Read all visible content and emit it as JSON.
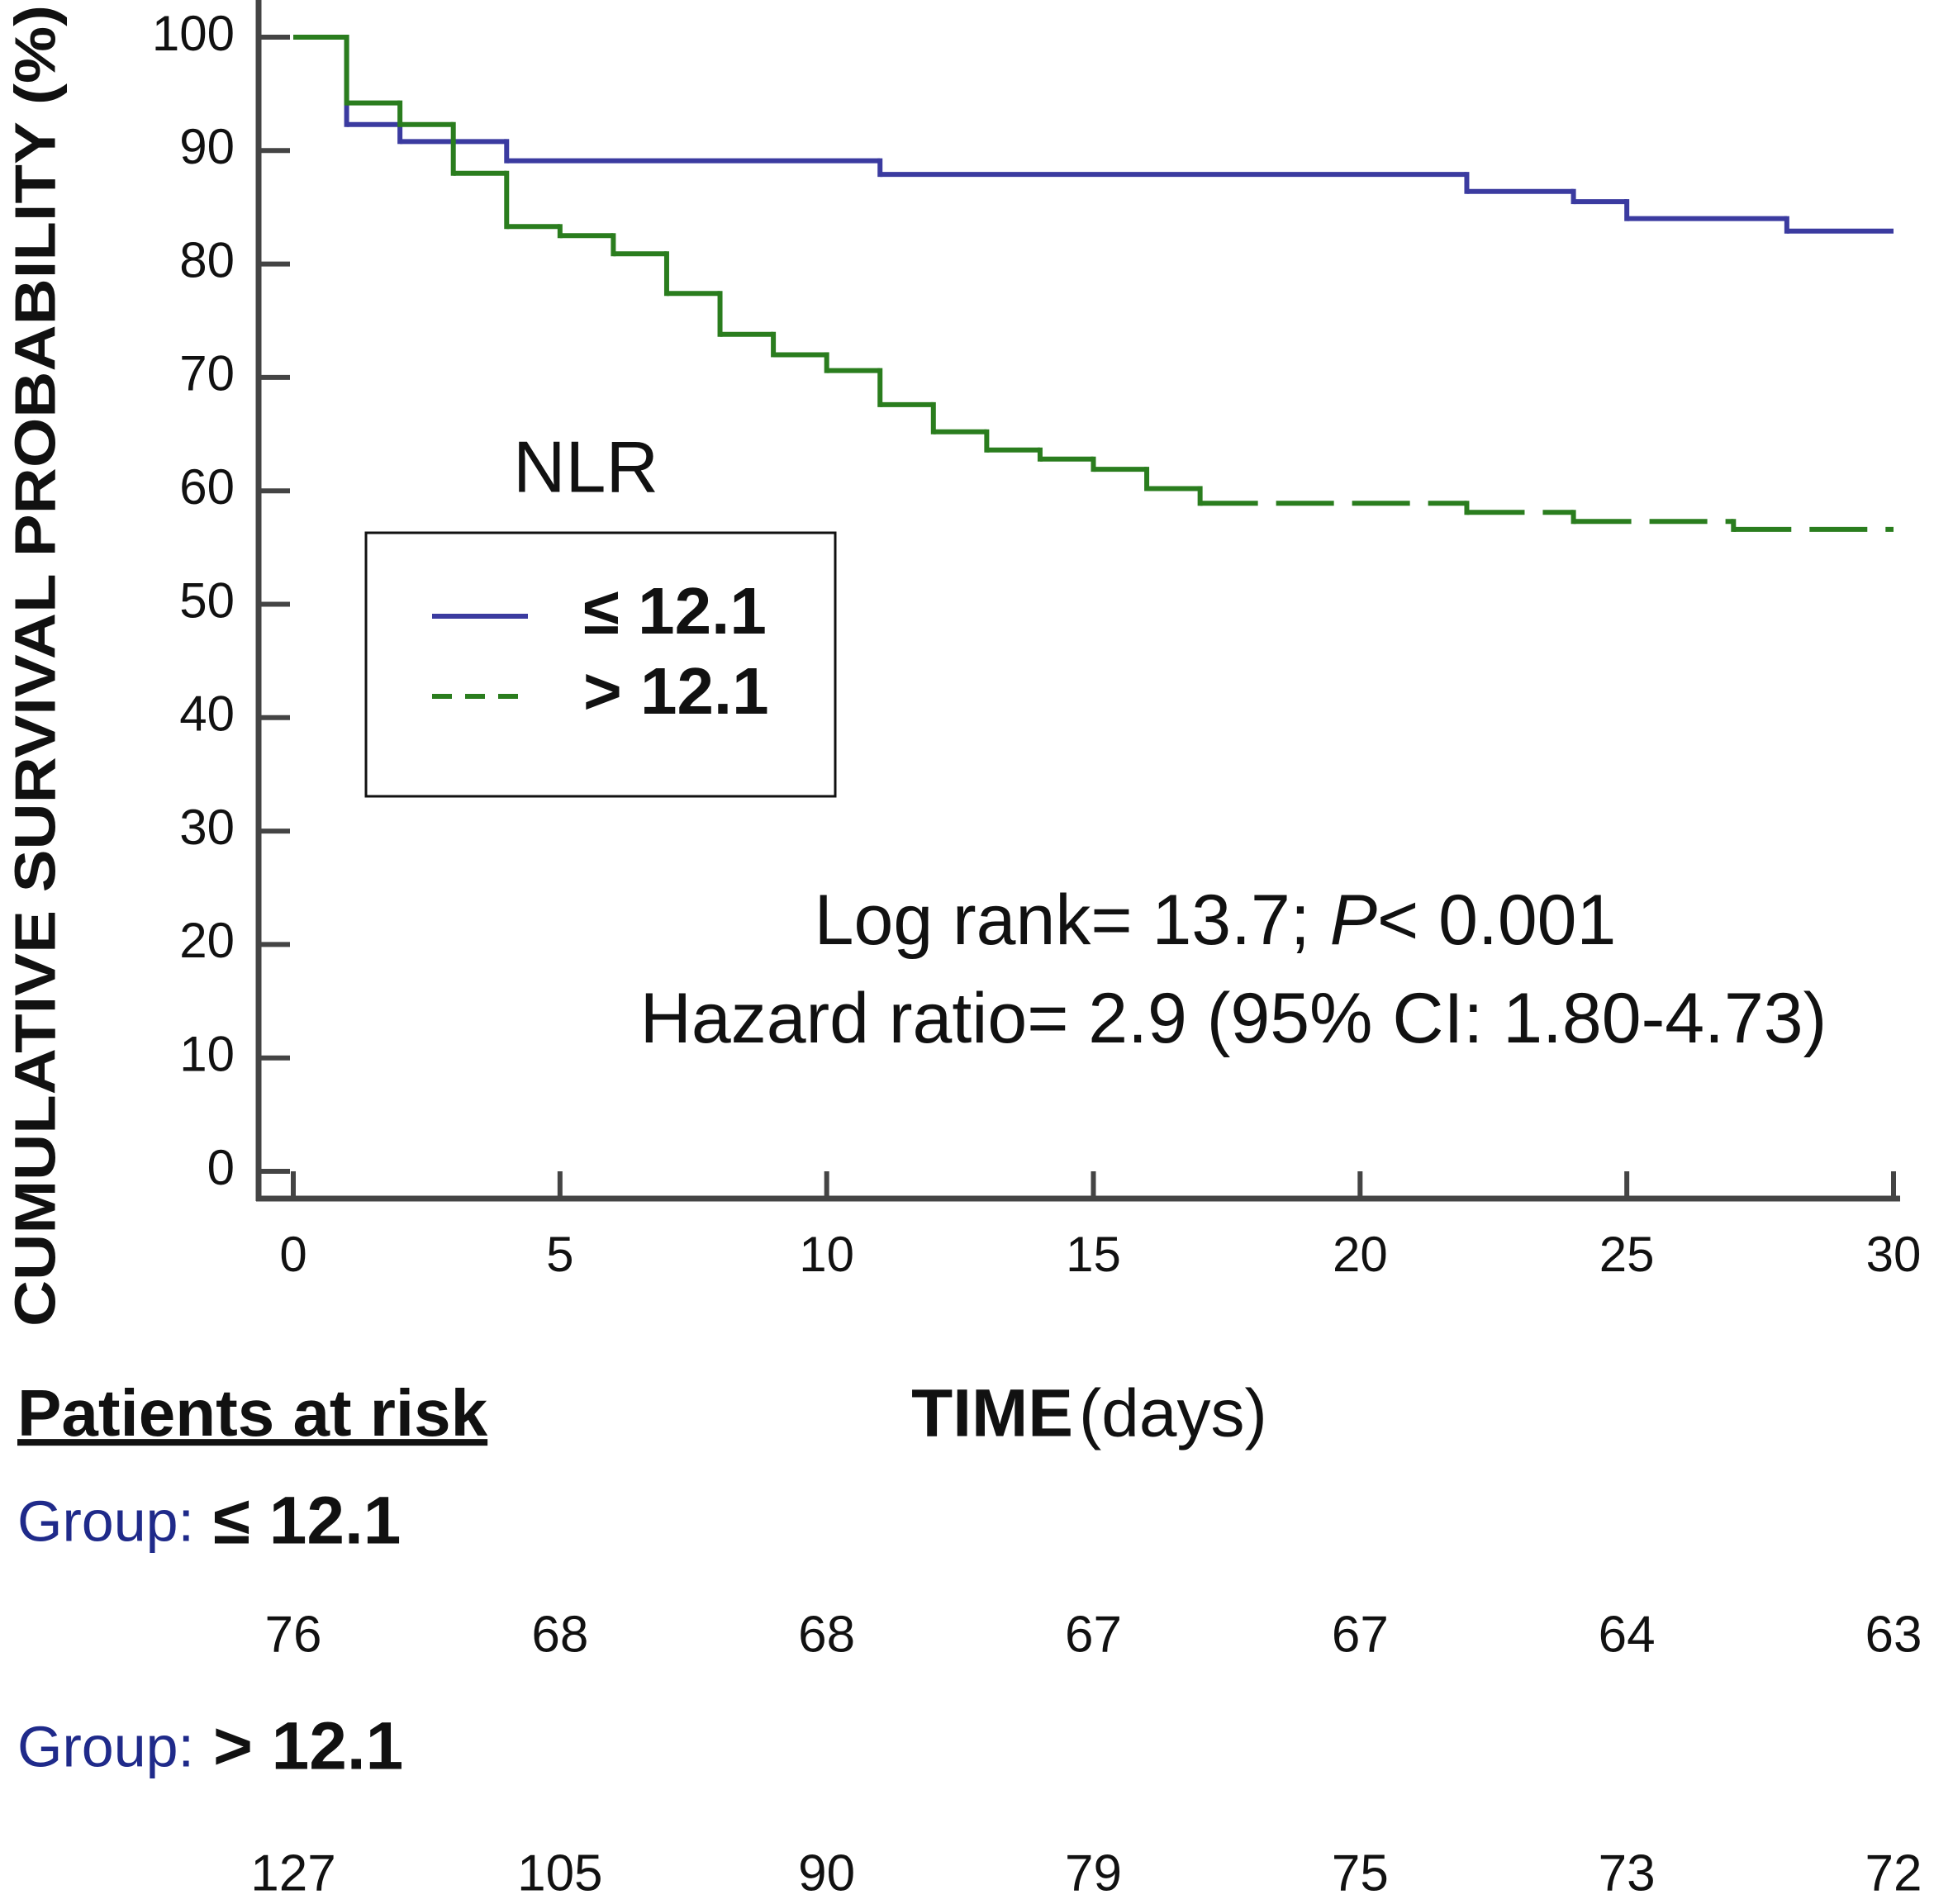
{
  "chart_data": {
    "type": "step",
    "ylabel": "CUMULATIVE SURVIVAL PROBABILITY (%)",
    "xlabel": "TIME",
    "xlabel_unit": "(days)",
    "xlim": [
      0,
      30
    ],
    "xticks": [
      0,
      5,
      10,
      15,
      20,
      25,
      30
    ],
    "ylim": [
      0,
      100
    ],
    "yticks": [
      0,
      10,
      20,
      30,
      40,
      50,
      60,
      70,
      80,
      90,
      100
    ],
    "legend_title": "NLR",
    "legend": "upper left",
    "annotations": [
      [
        "Log rank= 13.7; ",
        "P",
        "< 0.001"
      ],
      [
        "Hazard ratio= 2.9 (95% CI: 1.80-4.73)"
      ]
    ],
    "series": [
      {
        "name": "≤ 12.1",
        "color": "#3b3ba0",
        "dashed": false,
        "x": [
          0,
          1,
          2,
          4,
          11,
          22,
          24,
          25,
          28
        ],
        "values": [
          100,
          92.3,
          90.8,
          89.1,
          87.9,
          86.4,
          85.5,
          84,
          82.9
        ]
      },
      {
        "name": "> 12.1",
        "color": "#2a7d1e",
        "dashed": true,
        "x": [
          0,
          1,
          2,
          3,
          4,
          5,
          6,
          7,
          8,
          9,
          10,
          11,
          12,
          13,
          14,
          15,
          16,
          17,
          22,
          24,
          27
        ],
        "values": [
          100,
          94.2,
          92.3,
          88,
          83.3,
          82.5,
          80.9,
          77.4,
          73.8,
          72,
          70.6,
          67.6,
          65.2,
          63.6,
          62.8,
          61.9,
          60.2,
          58.9,
          58.1,
          57.3,
          56.6
        ]
      }
    ]
  },
  "risk_table": {
    "title": "Patients at risk",
    "groups": [
      {
        "prefix": "Group:",
        "name": "≤ 12.1",
        "counts": [
          76,
          68,
          68,
          67,
          67,
          64,
          63
        ]
      },
      {
        "prefix": "Group:",
        "name": "> 12.1",
        "counts": [
          127,
          105,
          90,
          79,
          75,
          73,
          72
        ]
      }
    ]
  }
}
